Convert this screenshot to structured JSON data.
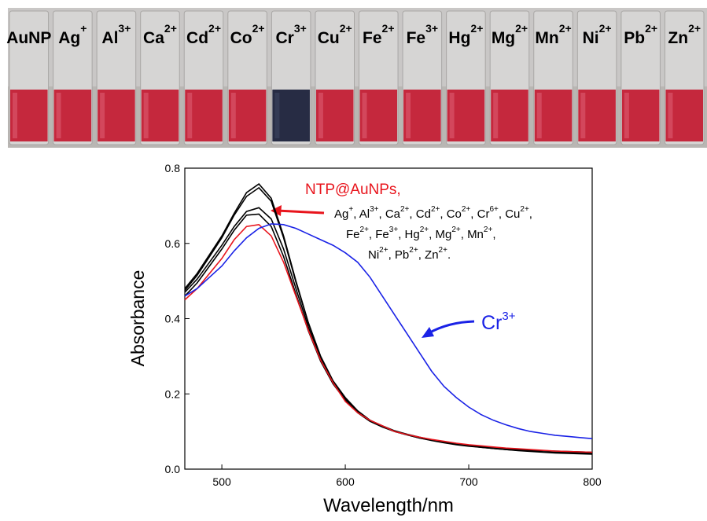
{
  "photo": {
    "labels": [
      {
        "base": "AuNP"
      },
      {
        "base": "Ag",
        "sup": "+"
      },
      {
        "base": "Al",
        "sup": "3+"
      },
      {
        "base": "Ca",
        "sup": "2+"
      },
      {
        "base": "Cd",
        "sup": "2+"
      },
      {
        "base": "Co",
        "sup": "2+"
      },
      {
        "base": "Cr",
        "sup": "3+"
      },
      {
        "base": "Cu",
        "sup": "2+"
      },
      {
        "base": "Fe",
        "sup": "2+"
      },
      {
        "base": "Fe",
        "sup": "3+"
      },
      {
        "base": "Hg",
        "sup": "2+"
      },
      {
        "base": "Mg",
        "sup": "2+"
      },
      {
        "base": "Mn",
        "sup": "2+"
      },
      {
        "base": "Ni",
        "sup": "2+"
      },
      {
        "base": "Pb",
        "sup": "2+"
      },
      {
        "base": "Zn",
        "sup": "2+"
      }
    ]
  },
  "chart_data": {
    "type": "line",
    "x_label": "Wavelength/nm",
    "y_label": "Absorbance",
    "xlim": [
      470,
      800
    ],
    "ylim": [
      0,
      0.8
    ],
    "xticks": [
      500,
      600,
      700,
      800
    ],
    "yticks": [
      {
        "value": 0,
        "label": "0.0"
      },
      0.2,
      0.4,
      0.6,
      0.8
    ],
    "x": [
      470,
      480,
      490,
      500,
      510,
      520,
      530,
      540,
      550,
      560,
      570,
      580,
      590,
      600,
      610,
      620,
      630,
      640,
      650,
      660,
      670,
      680,
      690,
      700,
      710,
      720,
      730,
      740,
      750,
      760,
      770,
      780,
      790,
      800
    ],
    "series": [
      {
        "color": "#000000",
        "values": [
          0.48,
          0.52,
          0.57,
          0.62,
          0.68,
          0.735,
          0.758,
          0.72,
          0.62,
          0.5,
          0.39,
          0.3,
          0.235,
          0.19,
          0.155,
          0.13,
          0.115,
          0.102,
          0.093,
          0.085,
          0.078,
          0.072,
          0.067,
          0.063,
          0.059,
          0.056,
          0.053,
          0.05,
          0.048,
          0.046,
          0.044,
          0.043,
          0.042,
          0.041
        ]
      },
      {
        "color": "#000000",
        "values": [
          0.475,
          0.515,
          0.565,
          0.615,
          0.675,
          0.725,
          0.748,
          0.712,
          0.615,
          0.497,
          0.388,
          0.299,
          0.234,
          0.189,
          0.154,
          0.13,
          0.114,
          0.101,
          0.092,
          0.084,
          0.077,
          0.071,
          0.066,
          0.062,
          0.058,
          0.055,
          0.052,
          0.049,
          0.047,
          0.045,
          0.043,
          0.042,
          0.041,
          0.04
        ]
      },
      {
        "color": "#000000",
        "values": [
          0.47,
          0.505,
          0.55,
          0.595,
          0.645,
          0.685,
          0.695,
          0.665,
          0.585,
          0.48,
          0.378,
          0.293,
          0.23,
          0.185,
          0.152,
          0.128,
          0.113,
          0.1,
          0.091,
          0.083,
          0.076,
          0.07,
          0.065,
          0.061,
          0.058,
          0.055,
          0.052,
          0.05,
          0.048,
          0.046,
          0.045,
          0.044,
          0.043,
          0.042
        ]
      },
      {
        "color": "#000000",
        "values": [
          0.46,
          0.495,
          0.54,
          0.585,
          0.635,
          0.675,
          0.678,
          0.645,
          0.565,
          0.465,
          0.368,
          0.287,
          0.227,
          0.183,
          0.15,
          0.127,
          0.112,
          0.1,
          0.091,
          0.083,
          0.077,
          0.071,
          0.066,
          0.062,
          0.059,
          0.056,
          0.054,
          0.052,
          0.05,
          0.049,
          0.048,
          0.047,
          0.046,
          0.045
        ]
      },
      {
        "color": "#e8141c",
        "values": [
          0.45,
          0.48,
          0.52,
          0.56,
          0.61,
          0.645,
          0.65,
          0.62,
          0.55,
          0.46,
          0.37,
          0.29,
          0.23,
          0.18,
          0.15,
          0.13,
          0.115,
          0.1,
          0.092,
          0.085,
          0.079,
          0.074,
          0.069,
          0.065,
          0.062,
          0.059,
          0.056,
          0.054,
          0.052,
          0.05,
          0.048,
          0.047,
          0.046,
          0.045
        ]
      },
      {
        "color": "#1a22e6",
        "values": [
          0.46,
          0.48,
          0.51,
          0.54,
          0.58,
          0.615,
          0.64,
          0.652,
          0.65,
          0.64,
          0.625,
          0.61,
          0.595,
          0.575,
          0.55,
          0.51,
          0.46,
          0.41,
          0.36,
          0.31,
          0.26,
          0.22,
          0.19,
          0.165,
          0.145,
          0.13,
          0.118,
          0.108,
          0.1,
          0.095,
          0.09,
          0.087,
          0.084,
          0.081
        ]
      }
    ],
    "annotations": {
      "title_red": "NTP@AuNPs,",
      "ion_lines": [
        [
          {
            "base": "Ag",
            "sup": "+",
            "after": ","
          },
          {
            "base": "Al",
            "sup": "3+",
            "after": ","
          },
          {
            "base": "Ca",
            "sup": "2+",
            "after": ","
          },
          {
            "base": "Cd",
            "sup": "2+",
            "after": ","
          },
          {
            "base": "Co",
            "sup": "2+",
            "after": ","
          },
          {
            "base": "Cr",
            "sup": "6+",
            "after": ","
          },
          {
            "base": "Cu",
            "sup": "2+",
            "after": ","
          }
        ],
        [
          {
            "base": "Fe",
            "sup": "2+",
            "after": ","
          },
          {
            "base": "Fe",
            "sup": "3+",
            "after": ","
          },
          {
            "base": "Hg",
            "sup": "2+",
            "after": ","
          },
          {
            "base": "Mg",
            "sup": "2+",
            "after": ","
          },
          {
            "base": "Mn",
            "sup": "2+",
            "after": ","
          }
        ],
        [
          {
            "base": "Ni",
            "sup": "2+",
            "after": ","
          },
          {
            "base": "Pb",
            "sup": "2+",
            "after": ","
          },
          {
            "base": "Zn",
            "sup": "2+",
            "after": "."
          }
        ]
      ],
      "cr_label": {
        "base": "Cr",
        "sup": "3+"
      }
    }
  }
}
